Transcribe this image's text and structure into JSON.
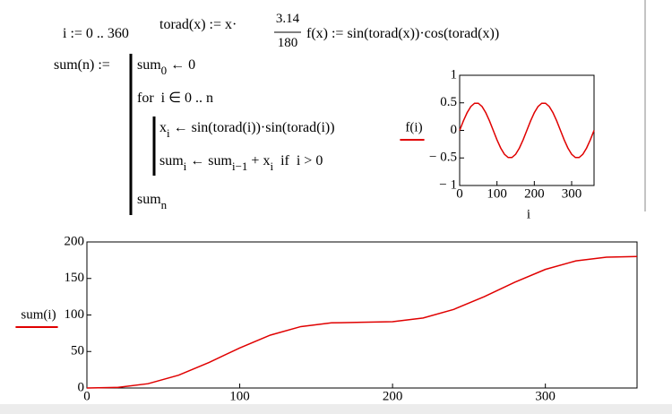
{
  "worksheet": {
    "range_def": "i := 0 .. 360",
    "torad_def": {
      "lhs": "torad(x) := x·",
      "numerator": "3.14",
      "denominator": "180"
    },
    "f_def": "f(x) := sin(torad(x))·cos(torad(x))",
    "sum_def": {
      "lhs": "sum(n) :=",
      "init": [
        "sum",
        "0",
        " ← 0"
      ],
      "loop": "for  i ∈ 0 .. n",
      "x_line": [
        "x",
        "i",
        " ← sin(torad(i))·sin(torad(i))"
      ],
      "sum_line": [
        "sum",
        "i",
        " ← sum",
        "i−1",
        " + x",
        "i",
        "  if  i > 0"
      ],
      "result": [
        "sum",
        "n"
      ]
    }
  },
  "chart_data": [
    {
      "type": "line",
      "x": [
        0,
        10,
        20,
        30,
        40,
        50,
        60,
        70,
        80,
        90,
        100,
        110,
        120,
        130,
        140,
        150,
        160,
        170,
        180,
        190,
        200,
        210,
        220,
        230,
        240,
        250,
        260,
        270,
        280,
        290,
        300,
        310,
        320,
        330,
        340,
        350,
        360
      ],
      "series": [
        {
          "name": "f(i)",
          "color": "#e00000",
          "values": [
            0,
            0.171,
            0.321,
            0.433,
            0.492,
            0.492,
            0.433,
            0.321,
            0.171,
            0,
            -0.171,
            -0.321,
            -0.433,
            -0.492,
            -0.492,
            -0.433,
            -0.321,
            -0.171,
            0,
            0.171,
            0.321,
            0.433,
            0.492,
            0.492,
            0.433,
            0.321,
            0.171,
            0,
            -0.171,
            -0.321,
            -0.433,
            -0.492,
            -0.492,
            -0.433,
            -0.321,
            -0.171,
            0
          ]
        }
      ],
      "xlabel": "i",
      "xlim": [
        0,
        360
      ],
      "xticks": [
        0,
        100,
        200,
        300
      ],
      "ylim": [
        -1,
        1
      ],
      "yticks": [
        {
          "value": -1,
          "label": "− 1"
        },
        {
          "value": -0.5,
          "label": "− 0.5"
        },
        0,
        0.5,
        1
      ]
    },
    {
      "type": "line",
      "x": [
        0,
        20,
        40,
        60,
        80,
        100,
        120,
        140,
        160,
        180,
        200,
        220,
        240,
        260,
        280,
        300,
        320,
        340,
        360
      ],
      "series": [
        {
          "name": "sum(i)",
          "color": "#e00000",
          "values": [
            0,
            0.8,
            5.9,
            17.6,
            35.1,
            54.9,
            72.4,
            84.1,
            89.2,
            90,
            90.8,
            95.9,
            107.6,
            125.1,
            144.9,
            162.4,
            174.1,
            179.2,
            180
          ]
        }
      ],
      "xlim": [
        0,
        360
      ],
      "xticks": [
        0,
        100,
        200,
        300
      ],
      "ylim": [
        0,
        200
      ],
      "yticks": [
        0,
        50,
        100,
        150,
        200
      ]
    }
  ]
}
